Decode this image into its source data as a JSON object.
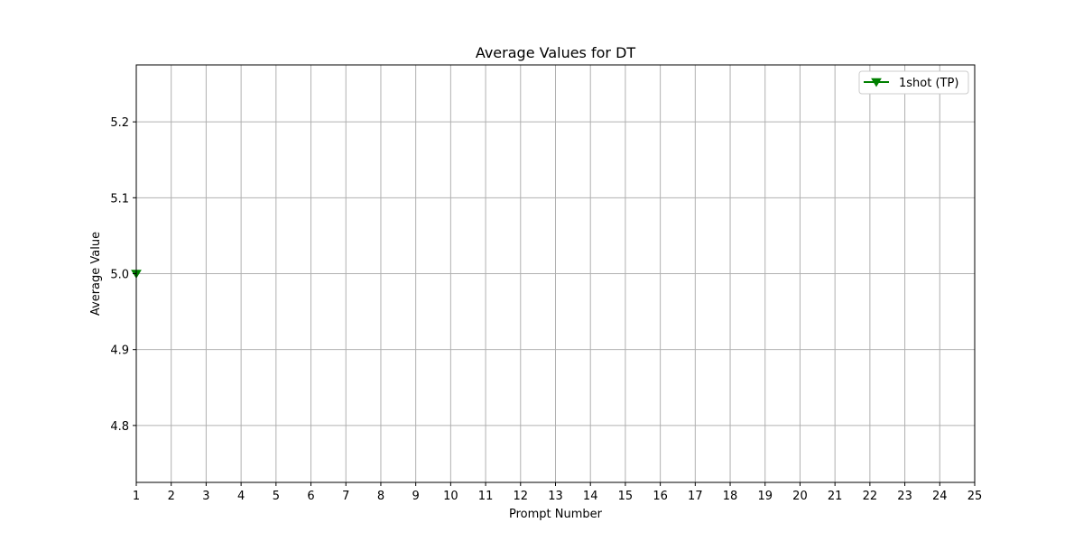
{
  "chart_data": {
    "type": "line",
    "title": "Average Values for DT",
    "xlabel": "Prompt Number",
    "ylabel": "Average Value",
    "xlim": [
      1,
      25
    ],
    "ylim": [
      4.725,
      5.275
    ],
    "x_ticks": [
      1,
      2,
      3,
      4,
      5,
      6,
      7,
      8,
      9,
      10,
      11,
      12,
      13,
      14,
      15,
      16,
      17,
      18,
      19,
      20,
      21,
      22,
      23,
      24,
      25
    ],
    "x_tick_labels": [
      "1",
      "2",
      "3",
      "4",
      "5",
      "6",
      "7",
      "8",
      "9",
      "10",
      "11",
      "12",
      "13",
      "14",
      "15",
      "16",
      "17",
      "18",
      "19",
      "20",
      "21",
      "22",
      "23",
      "24",
      "25"
    ],
    "y_ticks": [
      4.8,
      4.9,
      5.0,
      5.1,
      5.2
    ],
    "y_tick_labels": [
      "4.8",
      "4.9",
      "5.0",
      "5.1",
      "5.2"
    ],
    "grid": true,
    "legend_position": "top-right",
    "series": [
      {
        "name": "1shot (TP)",
        "color": "#008000",
        "marker": "triangle-down",
        "x": [
          1
        ],
        "y": [
          5.0
        ]
      }
    ]
  }
}
